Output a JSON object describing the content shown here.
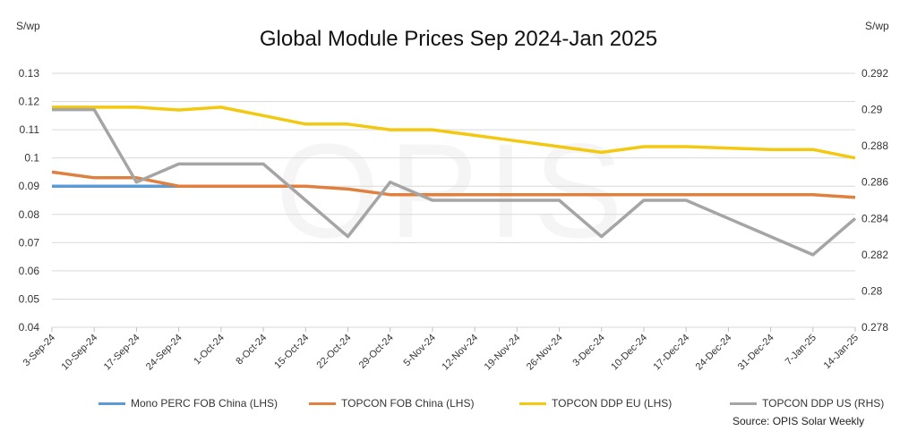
{
  "chart_data": {
    "type": "line",
    "title": "Global Module Prices Sep 2024-Jan 2025",
    "ylabel_left": "S/wp",
    "ylabel_right": "S/wp",
    "ylim_left": [
      0.04,
      0.13
    ],
    "yticks_left": [
      "0.04",
      "0.05",
      "0.06",
      "0.07",
      "0.08",
      "0.09",
      "0.1",
      "0.11",
      "0.12",
      "0.13"
    ],
    "ylim_right": [
      0.278,
      0.292
    ],
    "yticks_right": [
      "0.278",
      "0.28",
      "0.282",
      "0.284",
      "0.286",
      "0.288",
      "0.29",
      "0.292"
    ],
    "grid": true,
    "legend_placement": "bottom",
    "watermark": "OPIS",
    "source": "Source: OPIS Solar Weekly",
    "categories": [
      "3-Sep-24",
      "10-Sep-24",
      "17-Sep-24",
      "24-Sep-24",
      "1-Oct-24",
      "8-Oct-24",
      "15-Oct-24",
      "22-Oct-24",
      "29-Oct-24",
      "5-Nov-24",
      "12-Nov-24",
      "19-Nov-24",
      "26-Nov-24",
      "3-Dec-24",
      "10-Dec-24",
      "17-Dec-24",
      "24-Dec-24",
      "31-Dec-24",
      "7-Jan-25",
      "14-Jan-25"
    ],
    "series": [
      {
        "name": "Mono PERC FOB China (LHS)",
        "axis": "left",
        "color": "#5b9bd5",
        "values": [
          0.09,
          0.09,
          0.09,
          0.09,
          null,
          null,
          null,
          null,
          null,
          null,
          null,
          null,
          null,
          null,
          null,
          null,
          null,
          null,
          null,
          null
        ]
      },
      {
        "name": "TOPCON FOB China (LHS)",
        "axis": "left",
        "color": "#e0803f",
        "values": [
          0.095,
          0.093,
          0.093,
          0.09,
          0.09,
          0.09,
          0.09,
          0.089,
          0.087,
          0.087,
          0.087,
          0.087,
          0.087,
          0.087,
          0.087,
          0.087,
          0.087,
          0.087,
          0.087,
          0.086
        ]
      },
      {
        "name": "TOPCON DDP EU (LHS)",
        "axis": "left",
        "color": "#f2c811",
        "values": [
          0.118,
          0.118,
          0.118,
          0.117,
          0.118,
          0.115,
          0.112,
          0.112,
          0.11,
          0.11,
          0.108,
          0.106,
          0.104,
          0.102,
          0.104,
          0.104,
          0.1035,
          0.103,
          0.103,
          0.1
        ]
      },
      {
        "name": "TOPCON DDP US (RHS)",
        "axis": "right",
        "color": "#a5a5a5",
        "values": [
          0.29,
          0.29,
          0.286,
          0.287,
          0.287,
          0.287,
          0.285,
          0.283,
          0.286,
          0.285,
          0.285,
          0.285,
          0.285,
          0.283,
          0.285,
          0.285,
          0.284,
          0.283,
          0.282,
          0.284
        ]
      }
    ]
  }
}
